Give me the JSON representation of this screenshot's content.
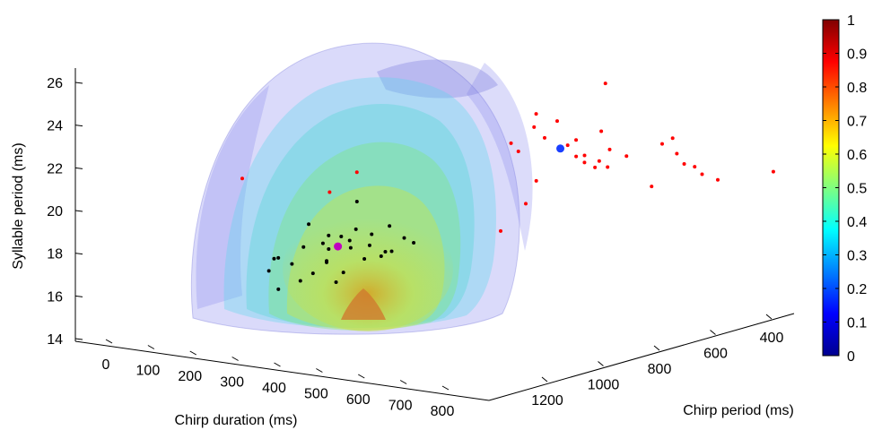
{
  "chart_data": {
    "type": "scatter",
    "xlabel": "Chirp duration (ms)",
    "ylabel": "Chirp period (ms)",
    "zlabel": "Syllable period (ms)",
    "x_ticks": [
      "0",
      "100",
      "200",
      "300",
      "400",
      "500",
      "600",
      "700",
      "800"
    ],
    "y_ticks": [
      "1200",
      "1000",
      "800",
      "600",
      "400"
    ],
    "z_ticks": [
      "14",
      "16",
      "18",
      "20",
      "22",
      "24",
      "26"
    ],
    "colorbar_ticks": [
      "0",
      "0.1",
      "0.2",
      "0.3",
      "0.4",
      "0.5",
      "0.6",
      "0.7",
      "0.8",
      "0.9",
      "1"
    ],
    "colorbar_range": [
      0,
      1
    ],
    "colormap": "jet",
    "grid": false,
    "series": [
      {
        "color": "#000000",
        "points": [
          [
            430,
            1130,
            20.2
          ],
          [
            455,
            1100,
            19.6
          ],
          [
            470,
            1080,
            19.5
          ],
          [
            490,
            1060,
            19.8
          ],
          [
            440,
            1160,
            19.3
          ],
          [
            410,
            1200,
            18.9
          ],
          [
            420,
            1170,
            18.5
          ],
          [
            395,
            1210,
            18.3
          ],
          [
            385,
            1180,
            18.7
          ],
          [
            500,
            1090,
            19.1
          ],
          [
            520,
            1050,
            19.6
          ],
          [
            540,
            1020,
            19.9
          ],
          [
            560,
            1000,
            19.3
          ],
          [
            545,
            1040,
            18.8
          ],
          [
            525,
            1080,
            18.6
          ],
          [
            505,
            1120,
            18.1
          ],
          [
            480,
            1140,
            18.6
          ],
          [
            470,
            1170,
            18.2
          ],
          [
            455,
            1190,
            17.9
          ],
          [
            510,
            1150,
            17.8
          ],
          [
            575,
            1060,
            19.0
          ],
          [
            590,
            1010,
            19.2
          ],
          [
            470,
            1030,
            20.9
          ],
          [
            505,
            1100,
            19.5
          ],
          [
            470,
            1120,
            19.1
          ],
          [
            495,
            1160,
            18.8
          ],
          [
            440,
            1240,
            17.7
          ],
          [
            530,
            1070,
            19.2
          ],
          [
            550,
            1060,
            18.7
          ],
          [
            475,
            1145,
            19.5
          ]
        ]
      },
      {
        "color": "#ff0000",
        "points": [
          [
            160,
            980,
            20.9
          ],
          [
            420,
            1050,
            21.3
          ],
          [
            440,
            990,
            22.0
          ],
          [
            590,
            700,
            22.4
          ],
          [
            600,
            640,
            22.9
          ],
          [
            590,
            620,
            23.4
          ],
          [
            640,
            620,
            23.2
          ],
          [
            700,
            560,
            22.6
          ],
          [
            670,
            600,
            22.3
          ],
          [
            640,
            660,
            22.6
          ],
          [
            700,
            640,
            21.8
          ],
          [
            720,
            640,
            21.9
          ],
          [
            740,
            620,
            21.6
          ],
          [
            720,
            560,
            21.8
          ],
          [
            760,
            560,
            21.6
          ],
          [
            700,
            580,
            21.0
          ],
          [
            690,
            600,
            21.3
          ],
          [
            730,
            580,
            21.1
          ],
          [
            800,
            500,
            22.0
          ],
          [
            820,
            480,
            21.5
          ],
          [
            830,
            470,
            21.0
          ],
          [
            840,
            450,
            20.8
          ],
          [
            880,
            430,
            20.2
          ],
          [
            760,
            480,
            19.8
          ],
          [
            880,
            480,
            20.7
          ],
          [
            930,
            320,
            20.2
          ],
          [
            600,
            690,
            22.0
          ],
          [
            680,
            520,
            24.6
          ],
          [
            650,
            700,
            20.8
          ],
          [
            640,
            800,
            18.9
          ],
          [
            640,
            720,
            19.8
          ],
          [
            810,
            480,
            22.2
          ],
          [
            650,
            600,
            22.0
          ]
        ]
      },
      {
        "color": "#1a3fff",
        "points": [
          [
            655,
            630,
            22.0
          ]
        ]
      },
      {
        "color": "#c000c0",
        "points": [
          [
            483,
            1108,
            19.2
          ]
        ]
      }
    ]
  }
}
